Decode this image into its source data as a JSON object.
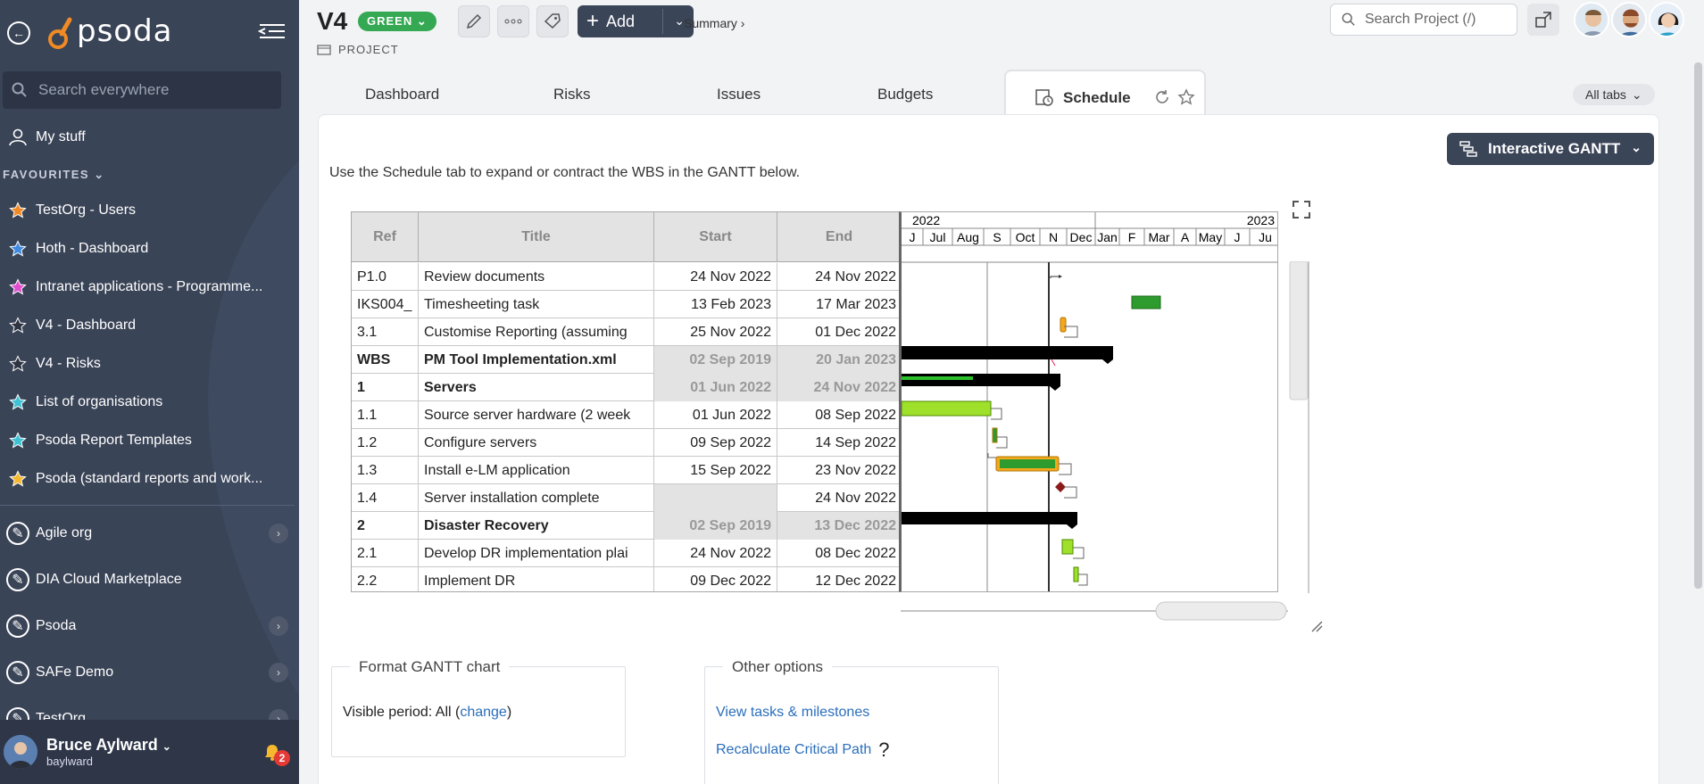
{
  "sidebar": {
    "logo": "psoda",
    "search_placeholder": "Search everywhere",
    "my_stuff": "My stuff",
    "favourites_header": "FAVOURITES",
    "favourites": [
      {
        "label": "TestOrg - Users",
        "color": "#f08a24"
      },
      {
        "label": "Hoth - Dashboard",
        "color": "#3f8ae0"
      },
      {
        "label": "Intranet applications - Programme...",
        "color": "#e24ccf"
      },
      {
        "label": "V4 - Dashboard",
        "color": "#2e3441"
      },
      {
        "label": "V4 - Risks",
        "color": "#2e3441"
      },
      {
        "label": "List of organisations",
        "color": "#3ec1d3"
      },
      {
        "label": "Psoda Report Templates",
        "color": "#3ec1d3"
      },
      {
        "label": "Psoda (standard reports and work...",
        "color": "#f5b82e"
      }
    ],
    "organisations": [
      {
        "label": "Agile org",
        "has_chevron": true
      },
      {
        "label": "DIA Cloud Marketplace",
        "has_chevron": false
      },
      {
        "label": "Psoda",
        "has_chevron": true
      },
      {
        "label": "SAFe Demo",
        "has_chevron": true
      },
      {
        "label": "TestOrg",
        "has_chevron": true
      }
    ],
    "user": {
      "name": "Bruce Aylward",
      "handle": "baylward",
      "notifications": "2"
    }
  },
  "header": {
    "title": "V4",
    "status": "GREEN",
    "type": "PROJECT",
    "add_label": "Add",
    "breadcrumb": "Summary ›",
    "search_placeholder": "Search Project (/)"
  },
  "tabs": {
    "items": [
      "Dashboard",
      "Risks",
      "Issues",
      "Budgets"
    ],
    "active": "Schedule",
    "all_tabs": "All tabs"
  },
  "panel": {
    "intro": "Use the Schedule tab to expand or contract the WBS in the GANTT below.",
    "gantt_button": "Interactive GANTT"
  },
  "gantt": {
    "columns": [
      "Ref",
      "Title",
      "Start",
      "End"
    ],
    "rows": [
      {
        "ref": "P1.0",
        "title": "Review documents",
        "start": "24 Nov 2022",
        "end": "24 Nov 2022",
        "summary": false
      },
      {
        "ref": "IKS004_",
        "title": "Timesheeting task",
        "start": "13 Feb 2023",
        "end": "17 Mar 2023",
        "summary": false
      },
      {
        "ref": "3.1",
        "title": "Customise Reporting (assuming",
        "start": "25 Nov 2022",
        "end": "01 Dec 2022",
        "summary": false
      },
      {
        "ref": "WBS",
        "title": "PM Tool Implementation.xml",
        "start": "02 Sep 2019",
        "end": "20 Jan 2023",
        "summary": true
      },
      {
        "ref": "1",
        "title": "Servers",
        "start": "01 Jun 2022",
        "end": "24 Nov 2022",
        "summary": true
      },
      {
        "ref": "1.1",
        "title": "Source server hardware (2 week",
        "start": "01 Jun 2022",
        "end": "08 Sep 2022",
        "summary": false
      },
      {
        "ref": "1.2",
        "title": "Configure servers",
        "start": "09 Sep 2022",
        "end": "14 Sep 2022",
        "summary": false
      },
      {
        "ref": "1.3",
        "title": "Install e-LM application",
        "start": "15 Sep 2022",
        "end": "23 Nov 2022",
        "summary": false
      },
      {
        "ref": "1.4",
        "title": "Server installation complete",
        "start": "",
        "end": "24 Nov 2022",
        "summary": false
      },
      {
        "ref": "2",
        "title": "Disaster Recovery",
        "start": "02 Sep 2019",
        "end": "13 Dec 2022",
        "summary": true
      },
      {
        "ref": "2.1",
        "title": "Develop DR implementation plai",
        "start": "24 Nov 2022",
        "end": "08 Dec 2022",
        "summary": false
      },
      {
        "ref": "2.2",
        "title": "Implement DR",
        "start": "09 Dec 2022",
        "end": "12 Dec 2022",
        "summary": false
      }
    ],
    "timeline": {
      "years": [
        "2022",
        "2023"
      ],
      "months": [
        "J",
        "Jul",
        "Aug",
        "S",
        "Oct",
        "N",
        "Dec",
        "Jan",
        "F",
        "Mar",
        "A",
        "May",
        "J",
        "Ju"
      ]
    }
  },
  "format_panel": {
    "legend": "Format GANTT chart",
    "visible_label": "Visible period: All (",
    "change_link": "change",
    "close_paren": ")"
  },
  "other_options": {
    "legend": "Other options",
    "link1": "View tasks & milestones",
    "link2": "Recalculate Critical Path",
    "help": "?"
  }
}
